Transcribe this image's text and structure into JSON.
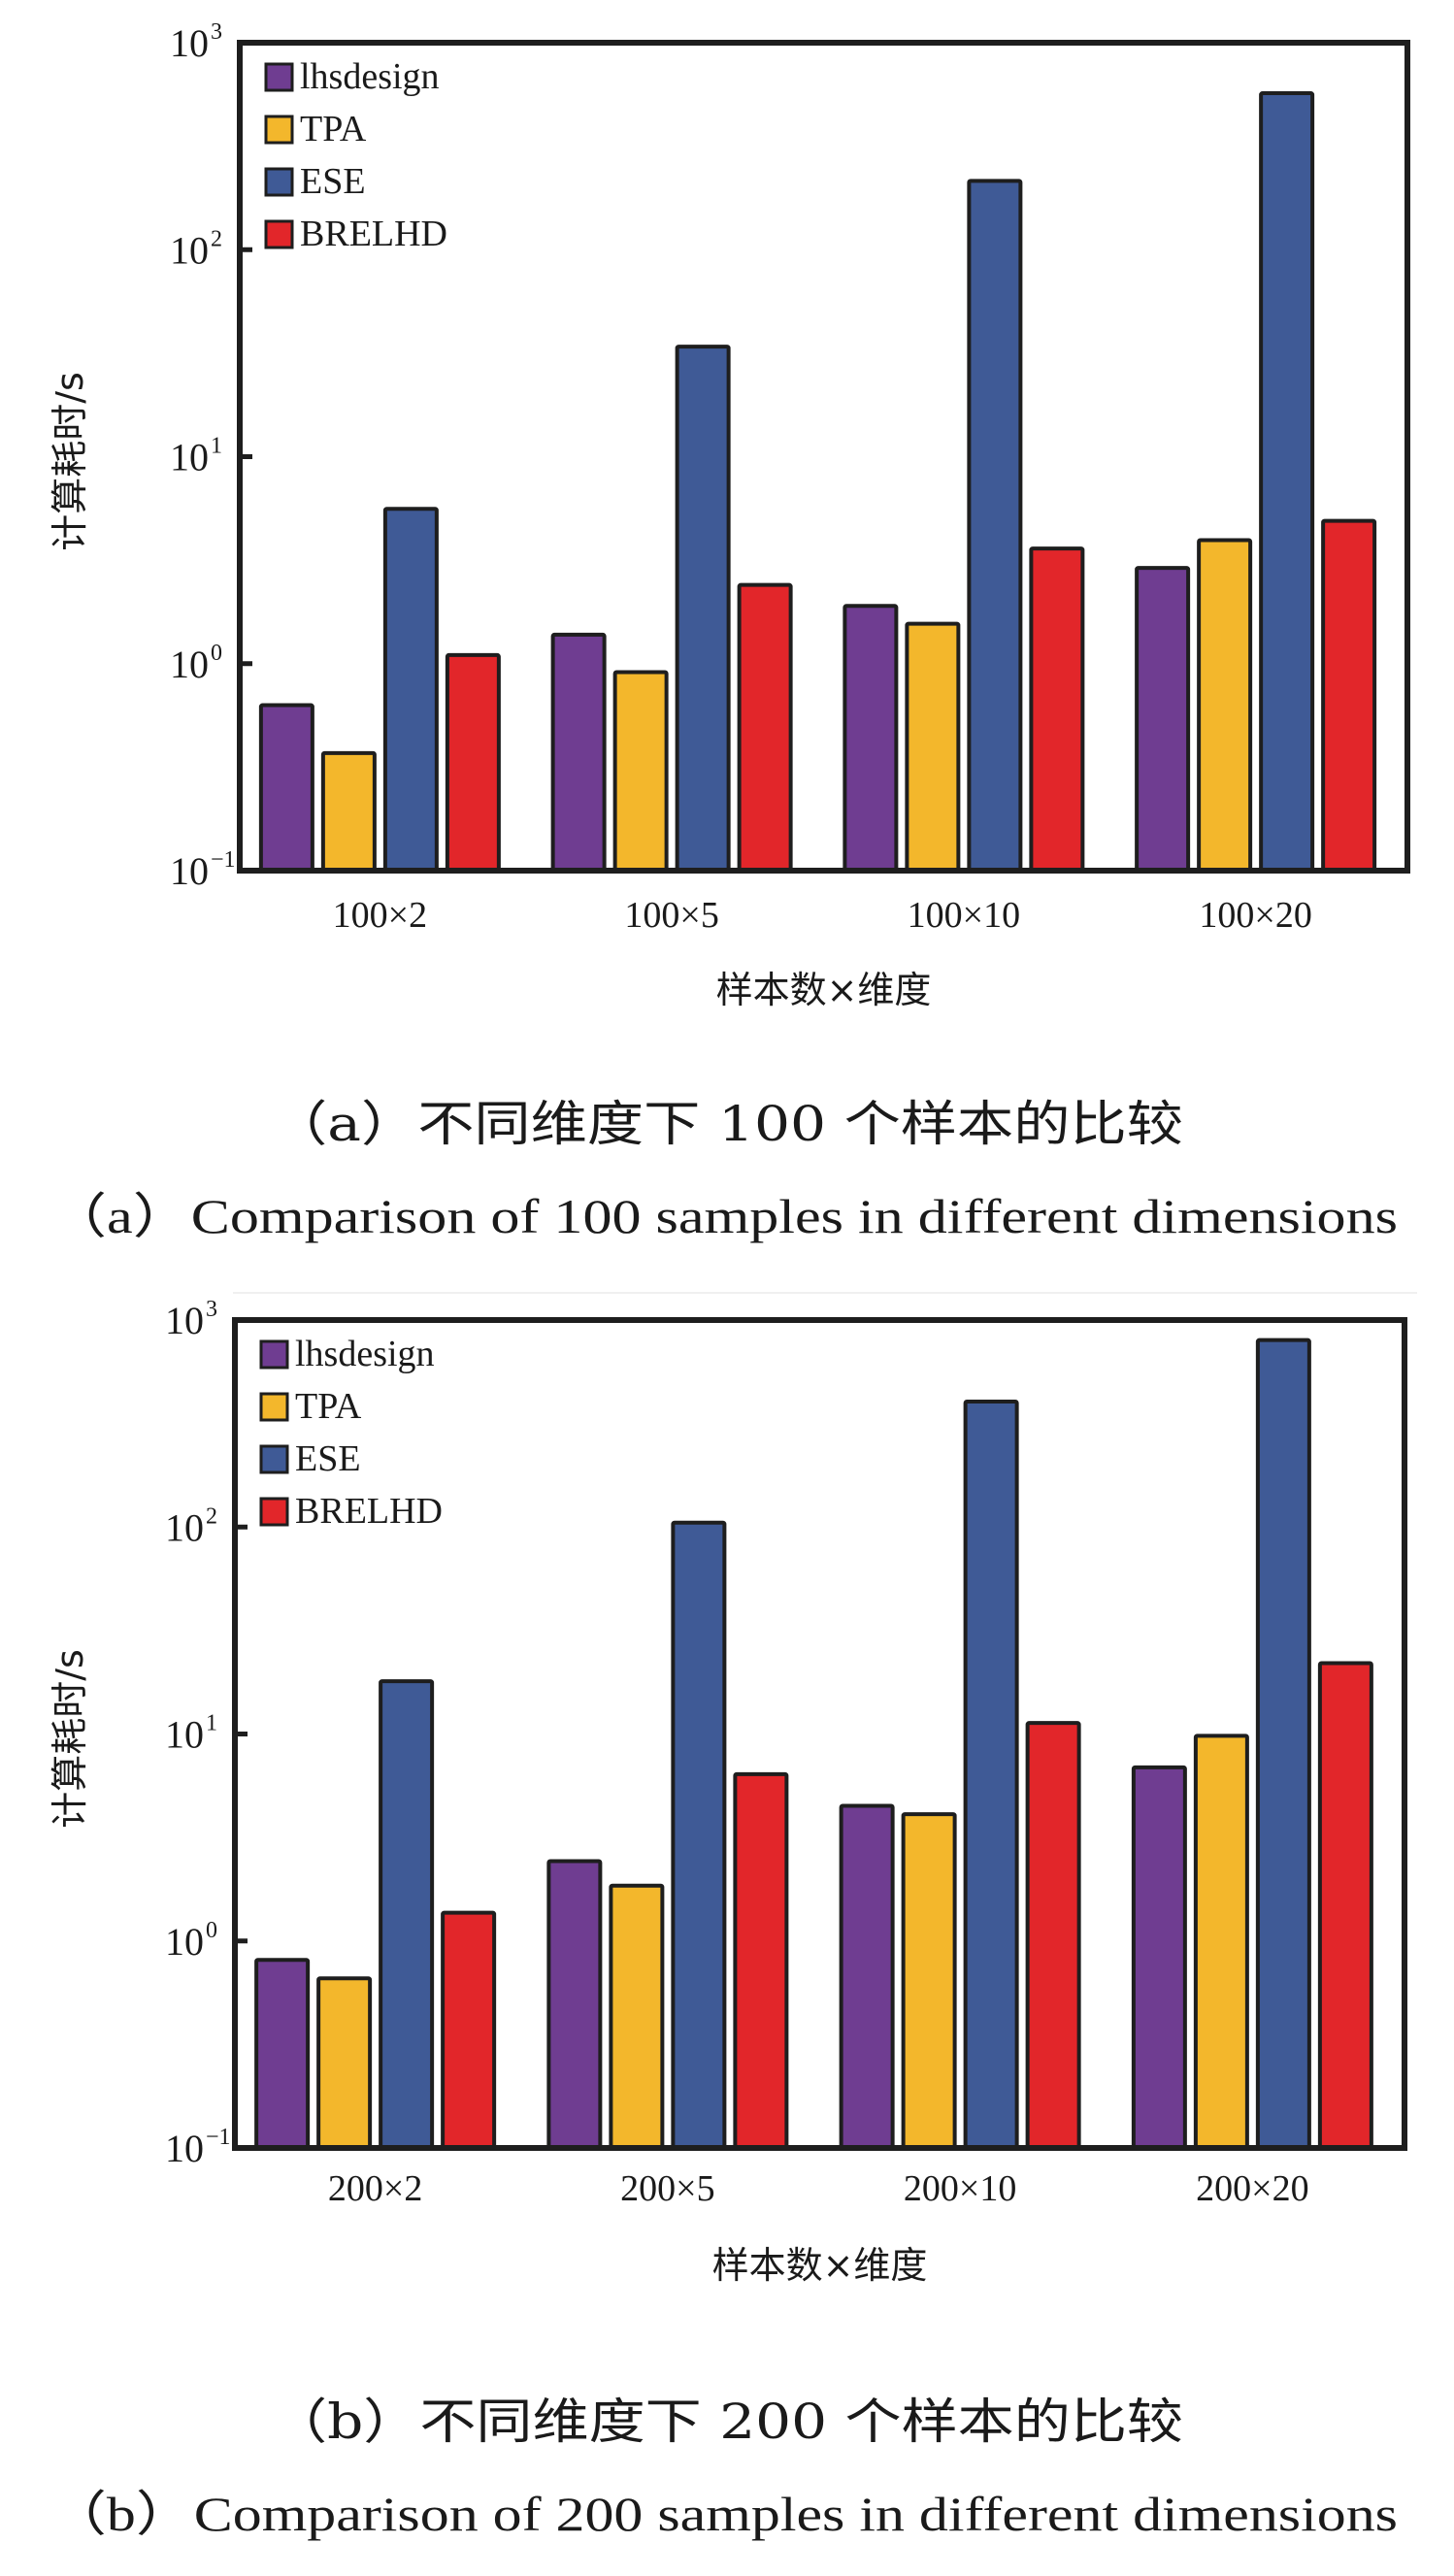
{
  "figure": {
    "separator": true
  },
  "chart_data": [
    {
      "id": "a",
      "type": "bar",
      "grouped": true,
      "yscale": "log",
      "title": "",
      "xlabel": "样本数×维度",
      "ylabel": "计算耗时/s",
      "ylim": [
        0.1,
        1000
      ],
      "yticks": [
        {
          "base": "10",
          "exp": "3",
          "value": 1000
        },
        {
          "base": "10",
          "exp": "2",
          "value": 100
        },
        {
          "base": "10",
          "exp": "1",
          "value": 10
        },
        {
          "base": "10",
          "exp": "0",
          "value": 1
        },
        {
          "base": "10",
          "exp": "−1",
          "value": 0.1
        }
      ],
      "categories": [
        "100×2",
        "100×5",
        "100×10",
        "100×20"
      ],
      "series": [
        {
          "name": "lhsdesign",
          "color": "#6f3d91",
          "values": [
            0.63,
            1.38,
            1.9,
            2.9
          ]
        },
        {
          "name": "TPA",
          "color": "#f3b72c",
          "values": [
            0.37,
            0.91,
            1.56,
            3.95
          ]
        },
        {
          "name": "ESE",
          "color": "#3f5a96",
          "values": [
            5.6,
            34,
            215,
            570
          ]
        },
        {
          "name": "BRELHD",
          "color": "#e2262a",
          "values": [
            1.1,
            2.4,
            3.6,
            4.9
          ]
        }
      ],
      "legend": {
        "position": "top-left",
        "entries": [
          "lhsdesign",
          "TPA",
          "ESE",
          "BRELHD"
        ]
      },
      "grid": false,
      "caption_cn": "（a）不同维度下 100 个样本的比较",
      "caption_en": "（a）Comparison of 100 samples in different dimensions"
    },
    {
      "id": "b",
      "type": "bar",
      "grouped": true,
      "yscale": "log",
      "title": "",
      "xlabel": "样本数×维度",
      "ylabel": "计算耗时/s",
      "ylim": [
        0.1,
        1000
      ],
      "yticks": [
        {
          "base": "10",
          "exp": "3",
          "value": 1000
        },
        {
          "base": "10",
          "exp": "2",
          "value": 100
        },
        {
          "base": "10",
          "exp": "1",
          "value": 10
        },
        {
          "base": "10",
          "exp": "0",
          "value": 1
        },
        {
          "base": "10",
          "exp": "−1",
          "value": 0.1
        }
      ],
      "categories": [
        "200×2",
        "200×5",
        "200×10",
        "200×20"
      ],
      "series": [
        {
          "name": "lhsdesign",
          "color": "#6f3d91",
          "values": [
            0.81,
            2.43,
            4.5,
            6.9
          ]
        },
        {
          "name": "TPA",
          "color": "#f3b72c",
          "values": [
            0.66,
            1.85,
            4.1,
            9.8
          ]
        },
        {
          "name": "ESE",
          "color": "#3f5a96",
          "values": [
            18,
            105,
            404,
            800
          ]
        },
        {
          "name": "BRELHD",
          "color": "#e2262a",
          "values": [
            1.37,
            6.4,
            11.3,
            22
          ]
        }
      ],
      "legend": {
        "position": "top-left",
        "entries": [
          "lhsdesign",
          "TPA",
          "ESE",
          "BRELHD"
        ]
      },
      "grid": false,
      "caption_cn": "（b）不同维度下 200 个样本的比较",
      "caption_en": "（b）Comparison of 200 samples in different dimensions"
    }
  ]
}
